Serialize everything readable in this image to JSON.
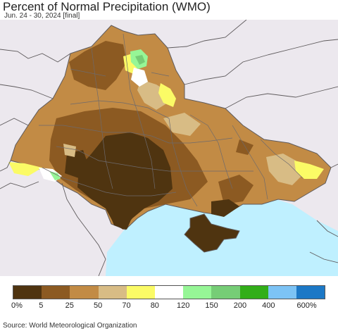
{
  "title": "Percent of Normal Precipitation (WMO)",
  "subtitle": "Jun. 24 - 30, 2024 [final]",
  "source": "Source: World Meteorological Organization",
  "legend": {
    "colors": [
      "#4f3410",
      "#8c5a22",
      "#c28b45",
      "#d8bc85",
      "#fbfb66",
      "#ffffff",
      "#96f696",
      "#76cd76",
      "#32ae19",
      "#7cc3f5",
      "#1c78c6"
    ],
    "labels": [
      "0%",
      "5",
      "25",
      "50",
      "70",
      "80",
      "120",
      "150",
      "200",
      "400",
      "600%"
    ]
  },
  "colors": {
    "background_land": "#ece8ee",
    "sea": "#bff0ff",
    "border": "#5e5a5c"
  }
}
